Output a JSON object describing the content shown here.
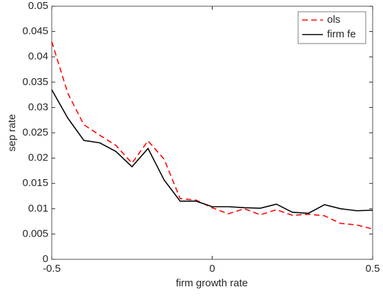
{
  "chart_data": {
    "type": "line",
    "x": [
      -0.5,
      -0.45,
      -0.4,
      -0.35,
      -0.3,
      -0.25,
      -0.2,
      -0.15,
      -0.1,
      -0.05,
      0,
      0.05,
      0.1,
      0.15,
      0.2,
      0.25,
      0.3,
      0.35,
      0.4,
      0.45,
      0.5
    ],
    "series": [
      {
        "name": "ols",
        "color": "#ff0000",
        "dash": true,
        "values": [
          0.043,
          0.0328,
          0.0266,
          0.0245,
          0.0225,
          0.019,
          0.0234,
          0.0198,
          0.012,
          0.0117,
          0.0102,
          0.009,
          0.01,
          0.0088,
          0.0098,
          0.0087,
          0.0089,
          0.0086,
          0.0071,
          0.0068,
          0.006
        ]
      },
      {
        "name": "firm fe",
        "color": "#000000",
        "dash": false,
        "values": [
          0.0335,
          0.0279,
          0.0235,
          0.023,
          0.0213,
          0.0183,
          0.0219,
          0.0157,
          0.0115,
          0.0115,
          0.0104,
          0.0104,
          0.0102,
          0.0101,
          0.0109,
          0.0093,
          0.0091,
          0.0108,
          0.01,
          0.0096,
          0.0097
        ]
      }
    ],
    "xlabel": "firm growth rate",
    "ylabel": "sep rate",
    "xlim": [
      -0.5,
      0.5
    ],
    "xticks": [
      -0.5,
      0,
      0.5
    ],
    "ylim": [
      0,
      0.05
    ],
    "yticks": [
      0,
      0.005,
      0.01,
      0.015,
      0.02,
      0.025,
      0.03,
      0.035,
      0.04,
      0.045,
      0.05
    ],
    "legend": "top-right"
  }
}
